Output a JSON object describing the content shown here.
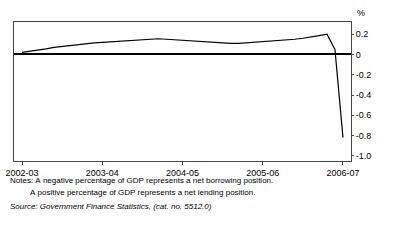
{
  "chart_data": {
    "type": "line",
    "x": [
      0,
      0.5,
      1.0,
      1.5,
      2.0,
      2.5,
      3.0,
      3.5,
      4.0,
      4.5,
      5.0,
      5.5,
      6.0,
      6.5,
      7.0,
      7.5,
      8.0,
      8.5,
      9.0,
      9.5,
      10.0,
      10.5,
      11.0,
      11.5,
      12.0,
      12.5,
      13.0,
      13.5,
      14.0,
      14.5,
      15.0,
      15.5,
      16.0,
      16.5,
      17.0,
      17.5,
      18.0,
      18.5,
      19.0,
      19.5,
      20.0
    ],
    "values": [
      0.02,
      0.03,
      0.04,
      0.055,
      0.07,
      0.08,
      0.09,
      0.1,
      0.11,
      0.115,
      0.12,
      0.125,
      0.13,
      0.135,
      0.14,
      0.15,
      0.155,
      0.155,
      0.15,
      0.145,
      0.14,
      0.13,
      0.125,
      0.12,
      0.115,
      0.11,
      0.11,
      0.11,
      0.115,
      0.12,
      0.125,
      0.13,
      0.135,
      0.14,
      0.15,
      0.16,
      0.17,
      0.185,
      0.2,
      0.05,
      -0.82
    ],
    "color": "#000000",
    "xlim": [
      -0.5,
      20.5
    ],
    "xticks": [
      {
        "value": 0,
        "label": "2002-03"
      },
      {
        "value": 5,
        "label": "2003-04"
      },
      {
        "value": 10,
        "label": "2004-05"
      },
      {
        "value": 15,
        "label": "2005-06"
      },
      {
        "value": 20,
        "label": "2006-07"
      }
    ],
    "ylim": [
      -1.05,
      0.32
    ],
    "yticks": [
      0.2,
      0,
      -0.2,
      -0.4,
      -0.6,
      -0.8,
      {
        "value": -1.0,
        "label": "-1.0"
      }
    ],
    "y_label": "%",
    "annotations": [
      "Notes: A negative percentage of GDP represents a net borrowing position.",
      "         A positive percentage of GDP represents a net lending position.",
      "Source: Government Finance Statistics, (cat. no. 5512.0)"
    ],
    "grid": false
  }
}
